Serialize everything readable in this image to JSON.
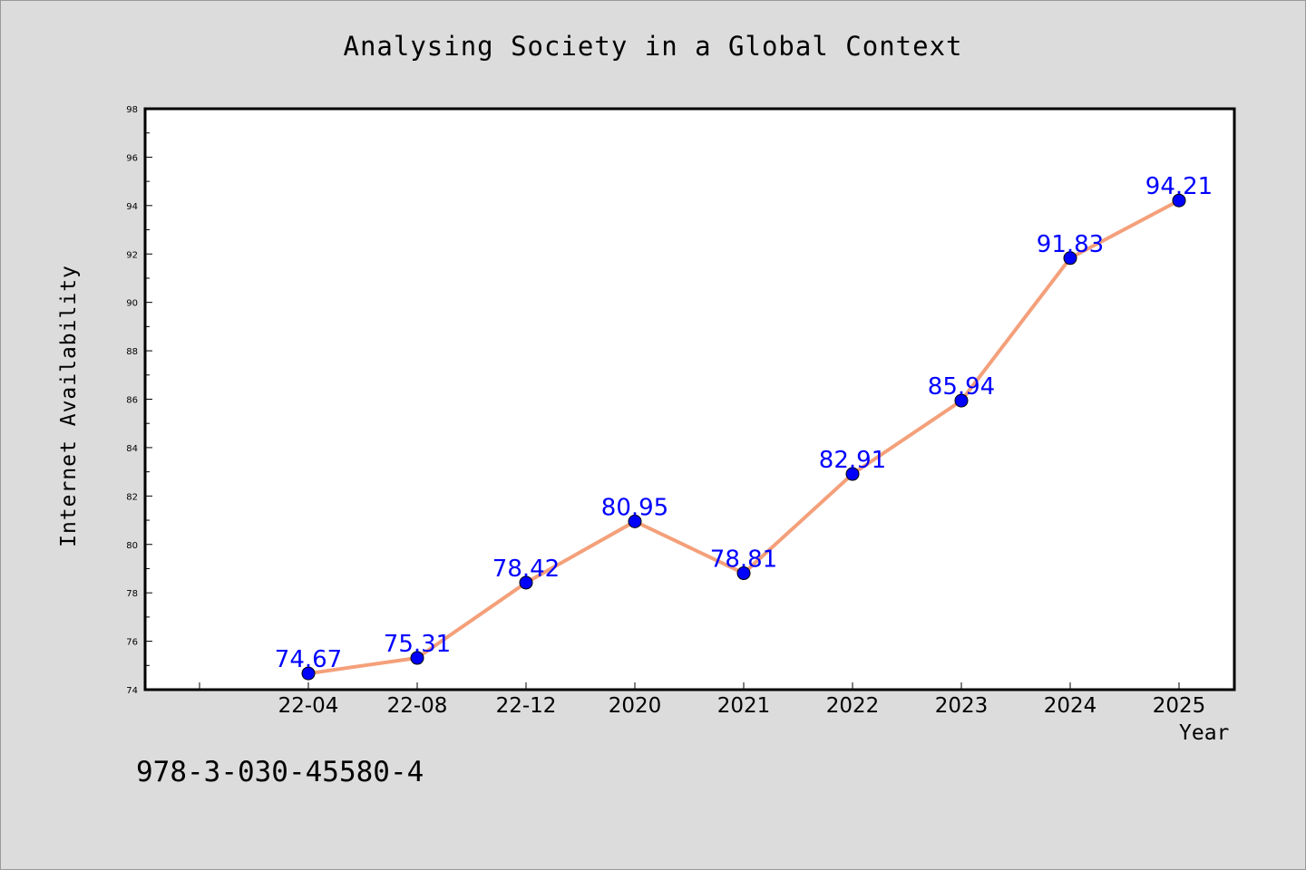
{
  "chart_data": {
    "type": "line",
    "title": "Analysing Society in a Global Context",
    "xlabel": "Year",
    "ylabel": "Internet Availability",
    "categories": [
      "22-04",
      "22-08",
      "22-12",
      "2020",
      "2021",
      "2022",
      "2023",
      "2024",
      "2025"
    ],
    "series": [
      {
        "values": [
          74.67,
          75.31,
          78.42,
          80.95,
          78.81,
          82.91,
          85.94,
          91.83,
          94.21
        ],
        "data_labels": [
          "74.67",
          "75.31",
          "78.42",
          "80.95",
          "78.81",
          "82.91",
          "85.94",
          "91.83",
          "94.21"
        ],
        "line_color": "#f4a07a",
        "marker_color": "#0000ff"
      }
    ],
    "ylim": [
      74,
      98
    ],
    "yticks": [
      "74",
      "76",
      "78",
      "80",
      "82",
      "84",
      "86",
      "88",
      "90",
      "92",
      "94",
      "96",
      "98"
    ],
    "grid": false,
    "legend": "none",
    "label_color": "#0000ff"
  },
  "footer": {
    "isbn": "978-3-030-45580-4"
  }
}
